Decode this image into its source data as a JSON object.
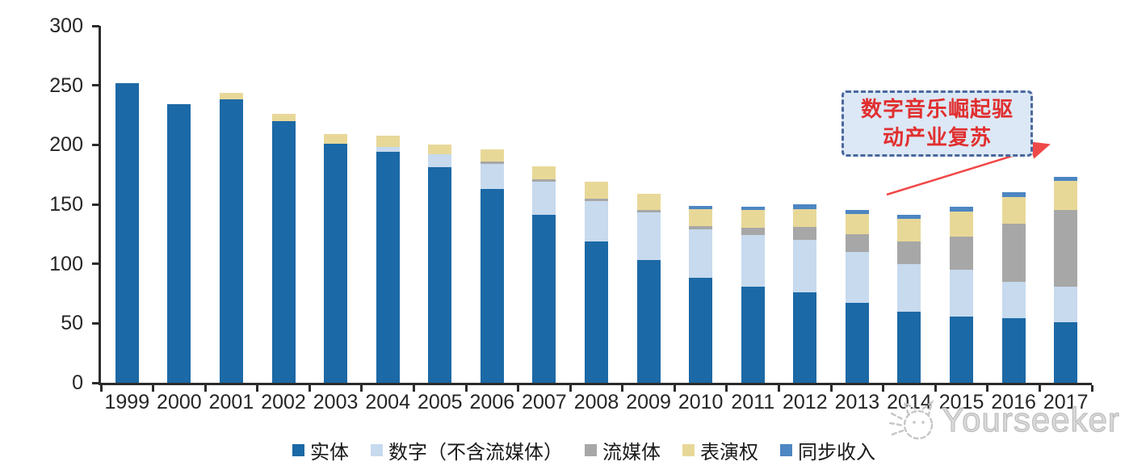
{
  "chart_data": {
    "type": "bar",
    "stacked": true,
    "categories": [
      "1999",
      "2000",
      "2001",
      "2002",
      "2003",
      "2004",
      "2005",
      "2006",
      "2007",
      "2008",
      "2009",
      "2010",
      "2011",
      "2012",
      "2013",
      "2014",
      "2015",
      "2016",
      "2017"
    ],
    "series": [
      {
        "name": "实体",
        "color": "#1b69a6",
        "values": [
          252,
          234,
          238,
          220,
          201,
          194,
          181,
          163,
          141,
          119,
          103,
          88,
          81,
          76,
          67,
          60,
          56,
          54,
          51
        ]
      },
      {
        "name": "数字（不含流媒体）",
        "color": "#c7daee",
        "values": [
          0,
          0,
          0,
          0,
          0,
          4,
          11,
          21,
          28,
          34,
          40,
          41,
          43,
          44,
          43,
          40,
          39,
          31,
          30
        ]
      },
      {
        "name": "流媒体",
        "color": "#a7a7a7",
        "values": [
          0,
          0,
          0,
          0,
          0,
          0,
          0,
          2,
          2,
          2,
          2,
          3,
          6,
          11,
          15,
          19,
          28,
          49,
          64
        ]
      },
      {
        "name": "表演权",
        "color": "#e8d898",
        "values": [
          0,
          0,
          6,
          6,
          8,
          10,
          8,
          10,
          11,
          14,
          14,
          14,
          15,
          15,
          17,
          19,
          21,
          22,
          25
        ]
      },
      {
        "name": "同步收入",
        "color": "#4d86c2",
        "values": [
          0,
          0,
          0,
          0,
          0,
          0,
          0,
          0,
          0,
          0,
          0,
          3,
          3,
          4,
          3,
          3,
          4,
          4,
          3
        ]
      }
    ],
    "ylim": [
      0,
      300
    ],
    "yticks": [
      0,
      50,
      100,
      150,
      200,
      250,
      300
    ],
    "grid": false,
    "legend_position": "bottom"
  },
  "annotation": {
    "line1": "数字音乐崛起驱",
    "line2": "动产业复苏",
    "fill_color": "#dce8f6",
    "border_color": "#4a689e",
    "text_color": "#e12f2f",
    "arrow_color": "#ef4848"
  },
  "watermark": {
    "text": "Yourseeker"
  }
}
